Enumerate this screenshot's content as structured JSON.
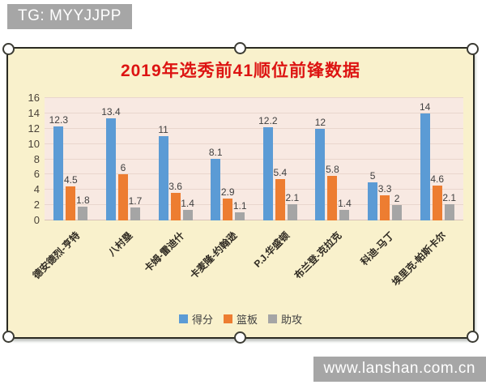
{
  "badges": {
    "watermark_top": "TG: MYYJJPP",
    "watermark_bottom": "www.lanshan.com.cn"
  },
  "chart_data": {
    "type": "bar",
    "title": "2019年选秀前41顺位前锋数据",
    "categories": [
      "德安德烈-亨特",
      "八村塁",
      "卡姆-雷迪什",
      "卡麦隆-约翰逊",
      "P.J.华盛顿",
      "布兰登-克拉克",
      "科迪-马丁",
      "埃里克-帕斯卡尔"
    ],
    "series": [
      {
        "name": "得分",
        "color": "#5B9BD5",
        "values": [
          12.3,
          13.4,
          11,
          8.1,
          12.2,
          12,
          5,
          14
        ]
      },
      {
        "name": "篮板",
        "color": "#ED7D31",
        "values": [
          4.5,
          6,
          3.6,
          2.9,
          5.4,
          5.8,
          3.3,
          4.6
        ]
      },
      {
        "name": "助攻",
        "color": "#A5A5A5",
        "values": [
          1.8,
          1.7,
          1.4,
          1.1,
          2.1,
          1.4,
          2,
          2.1
        ]
      }
    ],
    "ylim": [
      0,
      16
    ],
    "yticks": [
      0,
      2,
      4,
      6,
      8,
      10,
      12,
      14,
      16
    ],
    "grid": true,
    "legend_position": "bottom",
    "xlabel": "",
    "ylabel": ""
  },
  "colors": {
    "board_bg": "#f9f1cc",
    "plot_bg": "#f8e9e2",
    "title_red": "#dd1412",
    "badge_gray": "#a6a6a6",
    "gridline": "#e9d6cd"
  }
}
